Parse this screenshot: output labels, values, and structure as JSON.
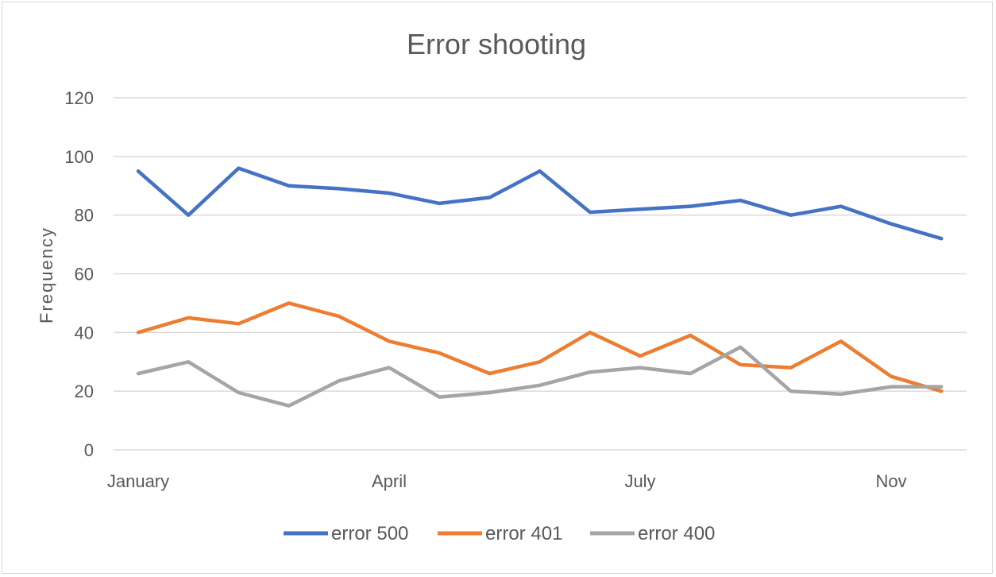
{
  "chart_data": {
    "type": "line",
    "title": "Error shooting",
    "xlabel": "",
    "ylabel": "Frequency",
    "ylim": [
      0,
      120
    ],
    "yticks": [
      "0",
      "20",
      "40",
      "60",
      "80",
      "100",
      "120"
    ],
    "x_tick_labels": [
      {
        "index": 0,
        "label": "January"
      },
      {
        "index": 5,
        "label": "April"
      },
      {
        "index": 10,
        "label": "July"
      },
      {
        "index": 15,
        "label": "Nov"
      }
    ],
    "point_count": 17,
    "grid": true,
    "legend_position": "bottom",
    "series": [
      {
        "name": "error 500",
        "color": "#4472c4",
        "values": [
          95,
          80,
          96,
          90,
          89,
          87.5,
          84,
          86,
          95,
          81,
          82,
          83,
          85,
          80,
          83,
          77,
          72
        ]
      },
      {
        "name": "error 401",
        "color": "#ed7d31",
        "values": [
          40,
          45,
          43,
          50,
          45.5,
          37,
          33,
          26,
          30,
          40,
          32,
          39,
          29,
          28,
          37,
          25,
          20
        ]
      },
      {
        "name": "error 400",
        "color": "#a5a5a5",
        "values": [
          26,
          30,
          19.5,
          15,
          23.5,
          28,
          18,
          19.5,
          22,
          26.5,
          28,
          26,
          35,
          20,
          19,
          21.5,
          21.5
        ]
      }
    ]
  }
}
